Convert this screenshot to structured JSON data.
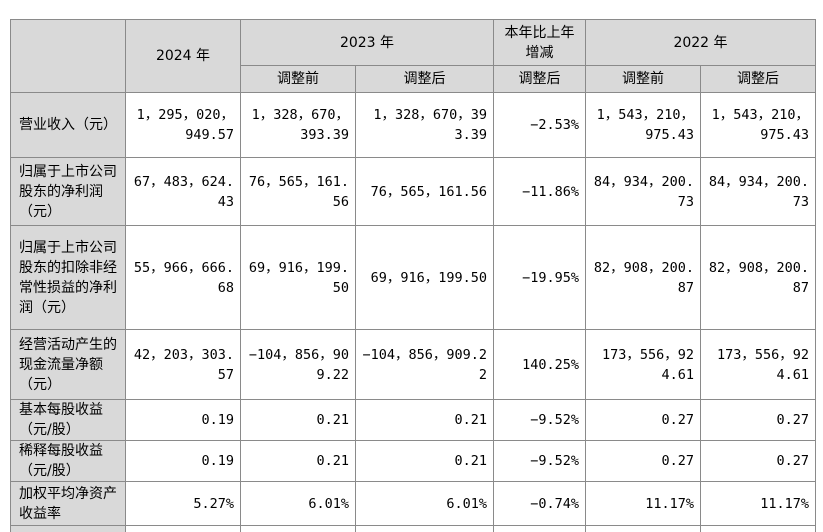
{
  "table": {
    "header": {
      "y2024": "2024 年",
      "y2023": "2023 年",
      "yoy": "本年比上年增减",
      "y2022": "2022 年",
      "before": "调整前",
      "after": "调整后"
    },
    "rows": [
      {
        "label": "营业收入（元）",
        "v2024": "1，295，020，949.57",
        "v2023_before": "1，328，670，393.39",
        "v2023_after": "1，328，670，393.39",
        "yoy": "−2.53%",
        "v2022_before": "1，543，210，975.43",
        "v2022_after": "1，543，210，975.43"
      },
      {
        "label": "归属于上市公司股东的净利润（元）",
        "v2024": "67，483，624.43",
        "v2023_before": "76，565，161.56",
        "v2023_after": "76，565，161.56",
        "yoy": "−11.86%",
        "v2022_before": "84，934，200.73",
        "v2022_after": "84，934，200.73"
      },
      {
        "label": "归属于上市公司股东的扣除非经常性损益的净利润（元）",
        "v2024": "55，966，666.68",
        "v2023_before": "69，916，199.50",
        "v2023_after": "69，916，199.50",
        "yoy": "−19.95%",
        "v2022_before": "82，908，200.87",
        "v2022_after": "82，908，200.87"
      },
      {
        "label": "经营活动产生的现金流量净额（元）",
        "v2024": "42，203，303.57",
        "v2023_before": "−104，856，909.22",
        "v2023_after": "−104，856，909.22",
        "yoy": "140.25%",
        "v2022_before": "173，556，924.61",
        "v2022_after": "173，556，924.61"
      },
      {
        "label": "基本每股收益（元/股）",
        "v2024": "0.19",
        "v2023_before": "0.21",
        "v2023_after": "0.21",
        "yoy": "−9.52%",
        "v2022_before": "0.27",
        "v2022_after": "0.27"
      },
      {
        "label": "稀释每股收益（元/股）",
        "v2024": "0.19",
        "v2023_before": "0.21",
        "v2023_after": "0.21",
        "yoy": "−9.52%",
        "v2022_before": "0.27",
        "v2022_after": "0.27"
      },
      {
        "label": "加权平均净资产收益率",
        "v2024": "5.27%",
        "v2023_before": "6.01%",
        "v2023_after": "6.01%",
        "yoy": "−0.74%",
        "v2022_before": "11.17%",
        "v2022_after": "11.17%"
      }
    ]
  }
}
